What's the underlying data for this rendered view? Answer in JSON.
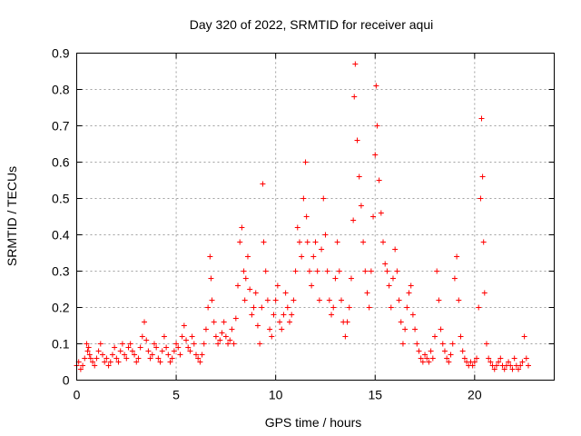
{
  "chart_data": {
    "type": "scatter",
    "title": "Day 320 of 2022, SRMTID for receiver aqui",
    "xlabel": "GPS time / hours",
    "ylabel": "SRMTID / TECUs",
    "xlim": [
      0,
      24
    ],
    "ylim": [
      0,
      0.9
    ],
    "xticks": [
      0,
      5,
      10,
      15,
      20
    ],
    "yticks": [
      0,
      0.1,
      0.2,
      0.3,
      0.4,
      0.5,
      0.6,
      0.7,
      0.8,
      0.9
    ],
    "grid": true,
    "marker": "+",
    "color": "#ff0000",
    "series": [
      {
        "name": "SRMTID",
        "x": [
          0.0,
          0.1,
          0.2,
          0.3,
          0.4,
          0.5,
          0.55,
          0.6,
          0.65,
          0.7,
          0.8,
          0.9,
          1.0,
          1.1,
          1.2,
          1.3,
          1.4,
          1.5,
          1.6,
          1.7,
          1.8,
          1.9,
          2.0,
          2.1,
          2.2,
          2.3,
          2.4,
          2.5,
          2.6,
          2.7,
          2.8,
          2.9,
          3.0,
          3.1,
          3.2,
          3.3,
          3.4,
          3.5,
          3.6,
          3.7,
          3.8,
          3.9,
          4.0,
          4.1,
          4.2,
          4.3,
          4.4,
          4.5,
          4.6,
          4.7,
          4.8,
          4.9,
          5.0,
          5.1,
          5.2,
          5.3,
          5.4,
          5.5,
          5.6,
          5.7,
          5.8,
          5.9,
          6.0,
          6.1,
          6.2,
          6.3,
          6.4,
          6.5,
          6.6,
          6.7,
          6.75,
          6.8,
          6.9,
          7.0,
          7.1,
          7.2,
          7.3,
          7.4,
          7.5,
          7.6,
          7.7,
          7.8,
          7.9,
          8.0,
          8.1,
          8.2,
          8.3,
          8.4,
          8.45,
          8.5,
          8.6,
          8.7,
          8.8,
          8.9,
          9.0,
          9.1,
          9.2,
          9.3,
          9.35,
          9.4,
          9.5,
          9.6,
          9.7,
          9.8,
          9.9,
          10.0,
          10.1,
          10.2,
          10.3,
          10.4,
          10.5,
          10.6,
          10.7,
          10.8,
          10.9,
          11.0,
          11.1,
          11.2,
          11.3,
          11.4,
          11.5,
          11.55,
          11.6,
          11.7,
          11.8,
          11.9,
          12.0,
          12.1,
          12.2,
          12.3,
          12.4,
          12.5,
          12.6,
          12.7,
          12.8,
          12.9,
          13.0,
          13.1,
          13.2,
          13.3,
          13.4,
          13.5,
          13.6,
          13.7,
          13.8,
          13.9,
          13.95,
          14.0,
          14.1,
          14.2,
          14.3,
          14.4,
          14.5,
          14.6,
          14.7,
          14.8,
          14.9,
          15.0,
          15.05,
          15.1,
          15.2,
          15.3,
          15.4,
          15.5,
          15.6,
          15.7,
          15.8,
          15.9,
          16.0,
          16.1,
          16.2,
          16.3,
          16.4,
          16.5,
          16.6,
          16.7,
          16.8,
          16.9,
          17.0,
          17.1,
          17.2,
          17.3,
          17.4,
          17.5,
          17.6,
          17.7,
          17.8,
          17.9,
          18.0,
          18.1,
          18.2,
          18.3,
          18.4,
          18.5,
          18.6,
          18.7,
          18.8,
          18.9,
          19.0,
          19.1,
          19.2,
          19.3,
          19.4,
          19.5,
          19.6,
          19.7,
          19.8,
          19.9,
          20.0,
          20.1,
          20.2,
          20.3,
          20.35,
          20.4,
          20.45,
          20.5,
          20.6,
          20.7,
          20.8,
          20.9,
          21.0,
          21.1,
          21.2,
          21.3,
          21.4,
          21.5,
          21.6,
          21.7,
          21.8,
          21.9,
          22.0,
          22.1,
          22.2,
          22.3,
          22.4,
          22.5,
          22.6,
          22.7
        ],
        "y": [
          0.04,
          0.05,
          0.03,
          0.04,
          0.06,
          0.1,
          0.08,
          0.09,
          0.07,
          0.06,
          0.05,
          0.04,
          0.06,
          0.08,
          0.1,
          0.07,
          0.05,
          0.06,
          0.04,
          0.05,
          0.07,
          0.09,
          0.06,
          0.05,
          0.08,
          0.1,
          0.07,
          0.06,
          0.09,
          0.1,
          0.08,
          0.07,
          0.05,
          0.06,
          0.09,
          0.12,
          0.16,
          0.11,
          0.08,
          0.06,
          0.07,
          0.1,
          0.09,
          0.06,
          0.05,
          0.08,
          0.12,
          0.09,
          0.07,
          0.05,
          0.06,
          0.08,
          0.1,
          0.09,
          0.07,
          0.12,
          0.15,
          0.11,
          0.09,
          0.08,
          0.12,
          0.1,
          0.07,
          0.06,
          0.05,
          0.07,
          0.1,
          0.14,
          0.2,
          0.34,
          0.28,
          0.22,
          0.16,
          0.12,
          0.1,
          0.11,
          0.13,
          0.16,
          0.12,
          0.1,
          0.11,
          0.14,
          0.1,
          0.17,
          0.26,
          0.38,
          0.42,
          0.3,
          0.22,
          0.28,
          0.34,
          0.25,
          0.18,
          0.2,
          0.24,
          0.15,
          0.1,
          0.2,
          0.54,
          0.38,
          0.3,
          0.22,
          0.14,
          0.12,
          0.18,
          0.22,
          0.26,
          0.16,
          0.14,
          0.18,
          0.24,
          0.2,
          0.16,
          0.18,
          0.22,
          0.3,
          0.42,
          0.38,
          0.34,
          0.5,
          0.6,
          0.45,
          0.38,
          0.3,
          0.26,
          0.34,
          0.38,
          0.3,
          0.22,
          0.36,
          0.5,
          0.4,
          0.3,
          0.22,
          0.18,
          0.2,
          0.28,
          0.38,
          0.3,
          0.22,
          0.16,
          0.12,
          0.16,
          0.2,
          0.28,
          0.44,
          0.78,
          0.87,
          0.66,
          0.56,
          0.48,
          0.38,
          0.3,
          0.24,
          0.2,
          0.3,
          0.45,
          0.62,
          0.81,
          0.7,
          0.55,
          0.46,
          0.38,
          0.32,
          0.3,
          0.26,
          0.2,
          0.28,
          0.36,
          0.3,
          0.22,
          0.16,
          0.1,
          0.14,
          0.2,
          0.24,
          0.26,
          0.18,
          0.14,
          0.1,
          0.08,
          0.06,
          0.05,
          0.07,
          0.06,
          0.05,
          0.08,
          0.06,
          0.12,
          0.3,
          0.22,
          0.14,
          0.1,
          0.08,
          0.06,
          0.05,
          0.07,
          0.1,
          0.28,
          0.34,
          0.22,
          0.12,
          0.08,
          0.06,
          0.05,
          0.04,
          0.05,
          0.04,
          0.05,
          0.06,
          0.2,
          0.5,
          0.72,
          0.56,
          0.38,
          0.24,
          0.1,
          0.06,
          0.05,
          0.04,
          0.03,
          0.04,
          0.05,
          0.06,
          0.04,
          0.03,
          0.04,
          0.05,
          0.04,
          0.03,
          0.06,
          0.04,
          0.03,
          0.04,
          0.05,
          0.12,
          0.06,
          0.04
        ]
      }
    ]
  }
}
